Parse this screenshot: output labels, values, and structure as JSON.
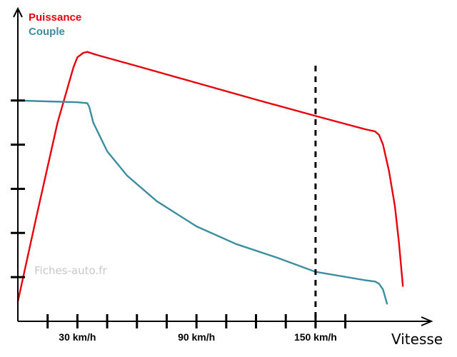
{
  "chart_data": {
    "type": "line",
    "title": "",
    "xlabel": "Vitesse",
    "ylabel": "",
    "x_tick_values": [
      0,
      15,
      30,
      45,
      60,
      75,
      90,
      105,
      120,
      135,
      150,
      165
    ],
    "x_tick_labels": [
      "",
      "",
      "30 km/h",
      "",
      "",
      "",
      "90 km/h",
      "",
      "",
      "",
      "150 km/h",
      ""
    ],
    "xlim": [
      0,
      204
    ],
    "ylim": [
      0,
      6.5
    ],
    "y_ticks": [
      1,
      2,
      3,
      4,
      5
    ],
    "grid": false,
    "legend_position": "top-left",
    "vline": {
      "x": 150,
      "style": "dashed",
      "color": "#000000"
    },
    "watermark": "Fiches-auto.fr",
    "series": [
      {
        "name": "Puissance",
        "color": "#e8000b",
        "points": [
          [
            0,
            0.45
          ],
          [
            10,
            2.5
          ],
          [
            20,
            4.5
          ],
          [
            28,
            5.75
          ],
          [
            30,
            5.98
          ],
          [
            33,
            6.08
          ],
          [
            35,
            6.1
          ],
          [
            40,
            6.03
          ],
          [
            60,
            5.78
          ],
          [
            90,
            5.4
          ],
          [
            120,
            5.02
          ],
          [
            150,
            4.65
          ],
          [
            175,
            4.35
          ],
          [
            180,
            4.3
          ],
          [
            182,
            4.22
          ],
          [
            184,
            4.0
          ],
          [
            187,
            3.4
          ],
          [
            190,
            2.6
          ],
          [
            192,
            1.8
          ],
          [
            194,
            0.8
          ]
        ]
      },
      {
        "name": "Couple",
        "color": "#3b8ea0",
        "points": [
          [
            0,
            5.0
          ],
          [
            15,
            4.98
          ],
          [
            30,
            4.96
          ],
          [
            35,
            4.94
          ],
          [
            36,
            4.85
          ],
          [
            38,
            4.5
          ],
          [
            45,
            3.85
          ],
          [
            55,
            3.3
          ],
          [
            70,
            2.72
          ],
          [
            90,
            2.15
          ],
          [
            110,
            1.75
          ],
          [
            130,
            1.45
          ],
          [
            150,
            1.12
          ],
          [
            175,
            0.93
          ],
          [
            180,
            0.9
          ],
          [
            182,
            0.85
          ],
          [
            184,
            0.72
          ],
          [
            186,
            0.4
          ]
        ]
      }
    ]
  }
}
